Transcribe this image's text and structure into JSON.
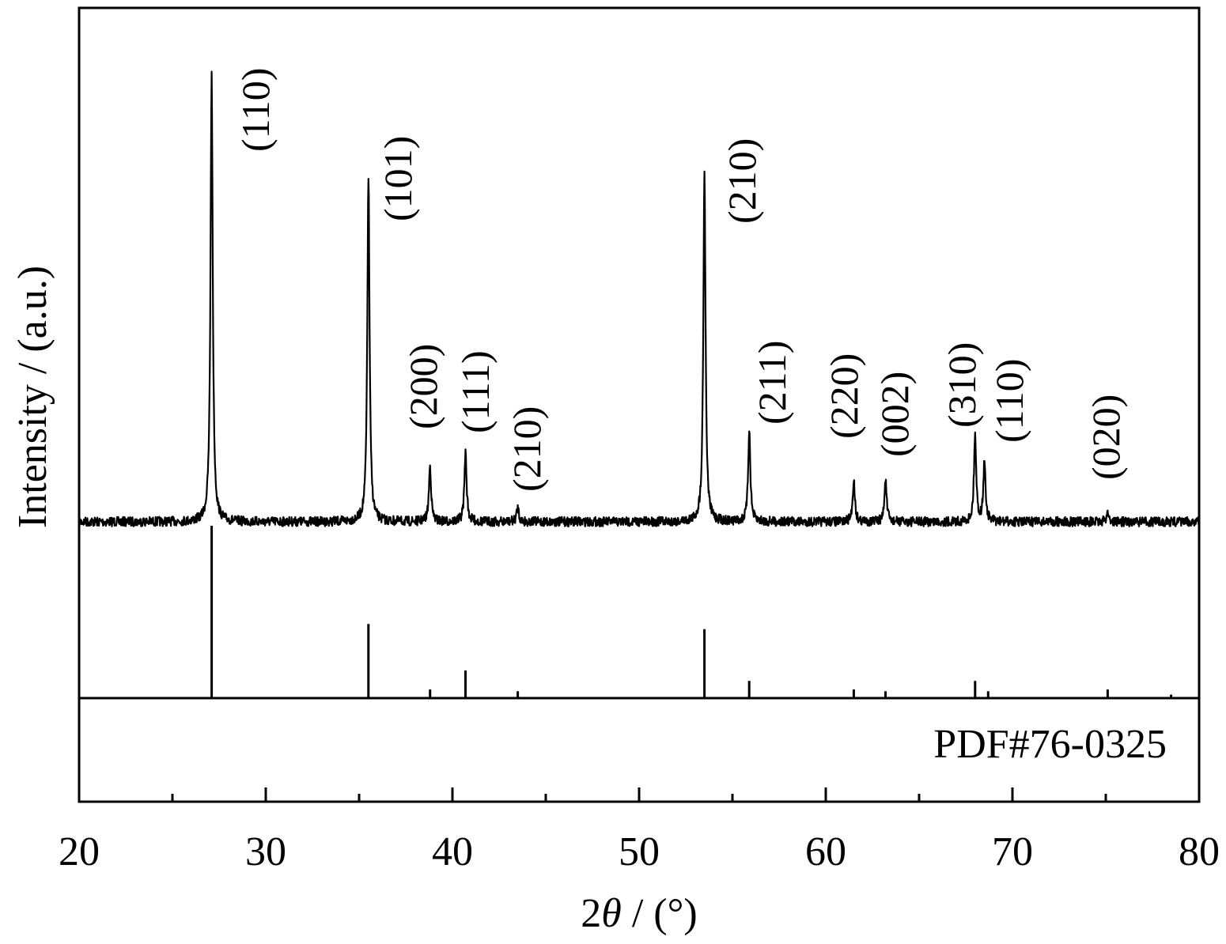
{
  "chart_data": {
    "type": "line",
    "xlabel_prefix": "2",
    "xlabel_symbol": "θ",
    "xlabel_suffix": " / (°)",
    "ylabel": "Intensity / (a.u.)",
    "xlim": [
      20,
      80
    ],
    "x_ticks": [
      "20",
      "30",
      "40",
      "50",
      "60",
      "70",
      "80"
    ],
    "x_tick_values": [
      20,
      30,
      40,
      50,
      60,
      70,
      80
    ],
    "x_minor_tick_values": [
      25,
      35,
      45,
      55,
      65,
      75
    ],
    "ylim_measured": [
      0,
      100
    ],
    "measured_baseline": 1.8,
    "series": [
      {
        "peaks": [
          {
            "x": 27.1,
            "y": 100,
            "label": "(110)"
          },
          {
            "x": 35.5,
            "y": 78,
            "label": "(101)"
          },
          {
            "x": 38.8,
            "y": 14,
            "label": "(200)"
          },
          {
            "x": 40.7,
            "y": 17,
            "label": "(111)"
          },
          {
            "x": 43.5,
            "y": 5,
            "label": "(210)"
          },
          {
            "x": 53.5,
            "y": 79,
            "label": "(210)"
          },
          {
            "x": 55.9,
            "y": 22,
            "label": "(211)"
          },
          {
            "x": 61.5,
            "y": 11,
            "label": "(220)"
          },
          {
            "x": 63.2,
            "y": 11,
            "label": "(002)"
          },
          {
            "x": 68.0,
            "y": 21,
            "label": "(310)"
          },
          {
            "x": 68.5,
            "y": 15,
            "label": "(110)"
          },
          {
            "x": 75.1,
            "y": 4,
            "label": "(020)"
          }
        ]
      }
    ],
    "reference": {
      "name": "PDF#76-0325",
      "lines": [
        {
          "x": 27.1,
          "y": 100
        },
        {
          "x": 35.5,
          "y": 43
        },
        {
          "x": 38.8,
          "y": 5
        },
        {
          "x": 40.7,
          "y": 16
        },
        {
          "x": 43.5,
          "y": 4
        },
        {
          "x": 53.5,
          "y": 40
        },
        {
          "x": 55.9,
          "y": 10
        },
        {
          "x": 61.5,
          "y": 5
        },
        {
          "x": 63.2,
          "y": 4
        },
        {
          "x": 68.0,
          "y": 10
        },
        {
          "x": 68.7,
          "y": 4
        },
        {
          "x": 75.1,
          "y": 5
        },
        {
          "x": 78.5,
          "y": 2
        }
      ]
    },
    "grid": false,
    "legend": "none"
  }
}
